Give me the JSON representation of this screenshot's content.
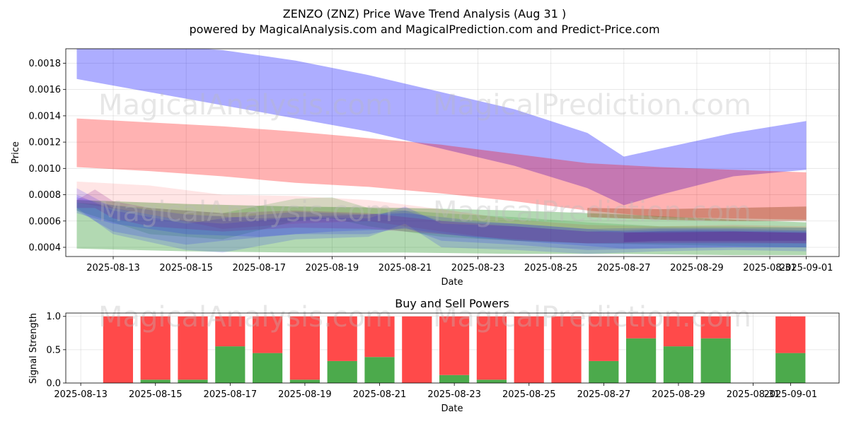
{
  "header": {
    "title": "ZENZO (ZNZ) Price Wave Trend Analysis (Aug 31 )",
    "subtitle": "powered by MagicalAnalysis.com and MagicalPrediction.com and Predict-Price.com"
  },
  "watermarks": {
    "left": "MagicalAnalysis.com",
    "right": "MagicalPrediction.com"
  },
  "chart_data": [
    {
      "type": "area",
      "title": "",
      "xlabel": "Date",
      "ylabel": "Price",
      "xlim": [
        "2025-08-11.7",
        "2025-09-01.9"
      ],
      "ylim": [
        0.00033,
        0.00191
      ],
      "grid": true,
      "x_ticks": [
        "2025-08-13",
        "2025-08-15",
        "2025-08-17",
        "2025-08-19",
        "2025-08-21",
        "2025-08-23",
        "2025-08-25",
        "2025-08-27",
        "2025-08-29",
        "2025-08-31",
        "2025-09-01"
      ],
      "y_ticks": [
        0.0004,
        0.0006,
        0.0008,
        0.001,
        0.0012,
        0.0014,
        0.0016,
        0.0018
      ],
      "y_tick_labels": [
        "0.0004",
        "0.0006",
        "0.0008",
        "0.0010",
        "0.0012",
        "0.0014",
        "0.0016",
        "0.0018"
      ],
      "bands": [
        {
          "color": "#0000ff",
          "opacity": 0.32,
          "x": [
            "2025-08-12",
            "2025-08-14",
            "2025-08-16",
            "2025-08-18",
            "2025-08-20",
            "2025-08-22",
            "2025-08-24",
            "2025-08-26",
            "2025-08-27",
            "2025-08-28",
            "2025-08-30",
            "2025-09-01"
          ],
          "upper": [
            0.00196,
            0.00194,
            0.0019,
            0.00182,
            0.00171,
            0.00158,
            0.00145,
            0.00127,
            0.00109,
            0.00115,
            0.00127,
            0.00136
          ],
          "lower": [
            0.00168,
            0.00158,
            0.00148,
            0.00138,
            0.00128,
            0.00115,
            0.00102,
            0.00085,
            0.00072,
            0.0008,
            0.00094,
            0.00099
          ]
        },
        {
          "color": "#ff0000",
          "opacity": 0.3,
          "x": [
            "2025-08-12",
            "2025-08-14",
            "2025-08-16",
            "2025-08-18",
            "2025-08-20",
            "2025-08-22",
            "2025-08-24",
            "2025-08-26",
            "2025-08-28",
            "2025-08-30",
            "2025-09-01"
          ],
          "upper": [
            0.00138,
            0.00135,
            0.00132,
            0.00128,
            0.00123,
            0.00118,
            0.00111,
            0.00104,
            0.00101,
            0.00099,
            0.00097
          ],
          "lower": [
            0.00101,
            0.00098,
            0.00094,
            0.00089,
            0.00086,
            0.00081,
            0.00075,
            0.00068,
            0.00063,
            0.00062,
            0.00061
          ]
        },
        {
          "color": "#008000",
          "opacity": 0.3,
          "x": [
            "2025-08-12",
            "2025-08-15",
            "2025-08-18",
            "2025-08-21",
            "2025-08-24",
            "2025-08-27",
            "2025-08-30",
            "2025-09-01"
          ],
          "upper": [
            0.00076,
            0.00073,
            0.00071,
            0.0007,
            0.00068,
            0.00065,
            0.00061,
            0.00059
          ],
          "lower": [
            0.00039,
            0.00037,
            0.00036,
            0.00036,
            0.00035,
            0.00035,
            0.00034,
            0.00034
          ]
        },
        {
          "color": "#ff0000",
          "opacity": 0.1,
          "x": [
            "2025-08-12",
            "2025-08-14",
            "2025-08-16",
            "2025-08-18",
            "2025-08-20",
            "2025-08-22",
            "2025-08-24",
            "2025-08-26",
            "2025-08-28",
            "2025-08-30",
            "2025-09-01"
          ],
          "upper": [
            0.0009,
            0.00087,
            0.0008,
            0.00079,
            0.00076,
            0.00069,
            0.00061,
            0.00057,
            0.00056,
            0.00057,
            0.00056
          ],
          "lower": [
            0.00074,
            0.00065,
            0.00054,
            0.00058,
            0.0006,
            0.00052,
            0.00045,
            0.00043,
            0.00044,
            0.00044,
            0.00043
          ]
        },
        {
          "color": "#a0522d",
          "opacity": 0.45,
          "x": [
            "2025-08-26",
            "2025-08-28",
            "2025-08-30",
            "2025-09-01"
          ],
          "upper": [
            0.0007,
            0.00069,
            0.0007,
            0.00071
          ],
          "lower": [
            0.00063,
            0.00061,
            0.0006,
            0.0006
          ]
        },
        {
          "color": "#008000",
          "opacity": 0.16,
          "x": [
            "2025-08-12",
            "2025-08-14",
            "2025-08-16",
            "2025-08-18",
            "2025-08-19",
            "2025-08-20",
            "2025-08-22",
            "2025-08-24",
            "2025-08-26",
            "2025-08-28",
            "2025-08-30",
            "2025-09-01"
          ],
          "upper": [
            0.00074,
            0.0007,
            0.00066,
            0.00077,
            0.00078,
            0.0007,
            0.00066,
            0.00063,
            0.00059,
            0.00056,
            0.00056,
            0.00055
          ],
          "lower": [
            0.00068,
            0.0005,
            0.00046,
            0.0006,
            0.00062,
            0.00056,
            0.00048,
            0.00045,
            0.00043,
            0.00042,
            0.00041,
            0.0004
          ]
        },
        {
          "color": "#0000ff",
          "opacity": 0.14,
          "x": [
            "2025-08-12",
            "2025-08-13",
            "2025-08-15",
            "2025-08-16",
            "2025-08-18",
            "2025-08-20",
            "2025-08-21",
            "2025-08-22",
            "2025-08-24",
            "2025-08-26",
            "2025-08-28",
            "2025-08-30",
            "2025-09-01"
          ],
          "upper": [
            0.00085,
            0.0007,
            0.0006,
            0.00058,
            0.00063,
            0.00062,
            0.00071,
            0.00058,
            0.00056,
            0.00052,
            0.00054,
            0.00054,
            0.00053
          ],
          "lower": [
            0.0007,
            0.0005,
            0.00038,
            0.00036,
            0.00046,
            0.00048,
            0.00058,
            0.0004,
            0.00038,
            0.00035,
            0.00037,
            0.00038,
            0.00037
          ]
        },
        {
          "color": "#0000ff",
          "opacity": 0.14,
          "x": [
            "2025-08-12",
            "2025-08-13",
            "2025-08-15",
            "2025-08-16",
            "2025-08-18",
            "2025-08-20",
            "2025-08-21",
            "2025-08-22",
            "2025-08-24",
            "2025-08-26",
            "2025-08-28",
            "2025-08-30",
            "2025-09-01"
          ],
          "upper": [
            0.0008,
            0.00068,
            0.00058,
            0.00062,
            0.00067,
            0.00065,
            0.00068,
            0.0006,
            0.00058,
            0.00054,
            0.00055,
            0.00055,
            0.00055
          ],
          "lower": [
            0.00068,
            0.00052,
            0.00042,
            0.00045,
            0.0005,
            0.0005,
            0.00055,
            0.00045,
            0.00042,
            0.00038,
            0.00039,
            0.0004,
            0.0004
          ]
        },
        {
          "color": "#0000ff",
          "opacity": 0.14,
          "x": [
            "2025-08-12",
            "2025-08-13",
            "2025-08-15",
            "2025-08-17",
            "2025-08-19",
            "2025-08-21",
            "2025-08-23",
            "2025-08-25",
            "2025-08-27",
            "2025-08-29",
            "2025-09-01"
          ],
          "upper": [
            0.00078,
            0.00072,
            0.00065,
            0.00062,
            0.00064,
            0.00066,
            0.0006,
            0.00056,
            0.00052,
            0.00053,
            0.00052
          ],
          "lower": [
            0.00066,
            0.00058,
            0.0005,
            0.00048,
            0.00052,
            0.00054,
            0.00047,
            0.00043,
            0.00039,
            0.0004,
            0.0004
          ]
        },
        {
          "color": "#800080",
          "opacity": 0.18,
          "x": [
            "2025-08-12",
            "2025-08-12.5",
            "2025-08-13",
            "2025-08-14",
            "2025-08-16",
            "2025-08-18",
            "2025-08-20",
            "2025-08-22",
            "2025-08-24",
            "2025-08-26",
            "2025-08-28",
            "2025-08-30",
            "2025-09-01"
          ],
          "upper": [
            0.00076,
            0.00084,
            0.00075,
            0.0007,
            0.00066,
            0.00068,
            0.00066,
            0.0006,
            0.00056,
            0.00052,
            0.00051,
            0.00052,
            0.00051
          ],
          "lower": [
            0.0007,
            0.0007,
            0.00062,
            0.00056,
            0.00052,
            0.00055,
            0.00054,
            0.0005,
            0.00046,
            0.00043,
            0.00043,
            0.00043,
            0.00043
          ]
        },
        {
          "color": "#4b0082",
          "opacity": 0.22,
          "x": [
            "2025-08-27",
            "2025-08-28",
            "2025-08-30",
            "2025-09-01"
          ],
          "upper": [
            0.00051,
            0.00052,
            0.00052,
            0.00051
          ],
          "lower": [
            0.00044,
            0.00045,
            0.00045,
            0.00045
          ]
        }
      ]
    },
    {
      "type": "bar",
      "title": "Buy and Sell Powers",
      "xlabel": "Date",
      "ylabel": "Signal Strength",
      "xlim": [
        "2025-08-12.6",
        "2025-09-02.3"
      ],
      "ylim": [
        0,
        1.05
      ],
      "grid": true,
      "x_ticks": [
        "2025-08-13",
        "2025-08-15",
        "2025-08-17",
        "2025-08-19",
        "2025-08-21",
        "2025-08-23",
        "2025-08-25",
        "2025-08-27",
        "2025-08-29",
        "2025-08-31",
        "2025-09-01"
      ],
      "y_ticks": [
        0.0,
        0.5,
        1.0
      ],
      "y_tick_labels": [
        "0.0",
        "0.5",
        "1.0"
      ],
      "colors": {
        "buy": "#4caa4c",
        "sell": "#ff4a4a"
      },
      "dates": [
        "2025-08-14",
        "2025-08-15",
        "2025-08-16",
        "2025-08-17",
        "2025-08-18",
        "2025-08-19",
        "2025-08-20",
        "2025-08-21",
        "2025-08-22",
        "2025-08-23",
        "2025-08-24",
        "2025-08-25",
        "2025-08-26",
        "2025-08-27",
        "2025-08-28",
        "2025-08-29",
        "2025-08-30",
        "2025-09-01"
      ],
      "series": [
        {
          "name": "Buy",
          "values": [
            0.0,
            0.05,
            0.05,
            0.55,
            0.45,
            0.05,
            0.33,
            0.39,
            0.0,
            0.12,
            0.05,
            0.0,
            0.0,
            0.33,
            0.67,
            0.55,
            0.67,
            0.45
          ]
        },
        {
          "name": "Sell",
          "values": [
            1.0,
            0.95,
            0.95,
            0.45,
            0.55,
            0.95,
            0.67,
            0.61,
            1.0,
            0.88,
            0.95,
            1.0,
            1.0,
            0.67,
            0.33,
            0.45,
            0.33,
            0.55
          ]
        }
      ]
    }
  ]
}
